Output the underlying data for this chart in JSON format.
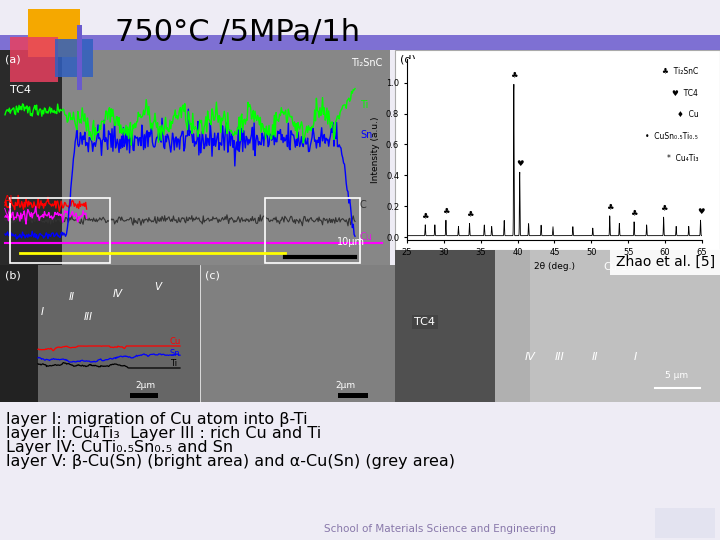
{
  "title": "750°C /5MPa/1h",
  "title_fontsize": 22,
  "background_color": "#eeecf5",
  "header_bar_color": "#6a5acd",
  "logo_yellow": "#f5a800",
  "logo_red": "#e84060",
  "logo_blue": "#3060c0",
  "text_lines": [
    "layer I: migration of Cu atom into β-Ti",
    "layer II: Cu₄Ti₃  Layer III : rich Cu and Ti",
    "Layer IV: CuTi₀.₅Sn₀.₅ and Sn",
    "layer V: β-Cu(Sn) (bright area) and α-Cu(Sn) (grey area)"
  ],
  "text_fontsize": 11.5,
  "bottom_text": "School of Materials Science and Engineering",
  "bottom_text_color": "#8878aa",
  "zhao_label": "Zhao et al. [5]"
}
